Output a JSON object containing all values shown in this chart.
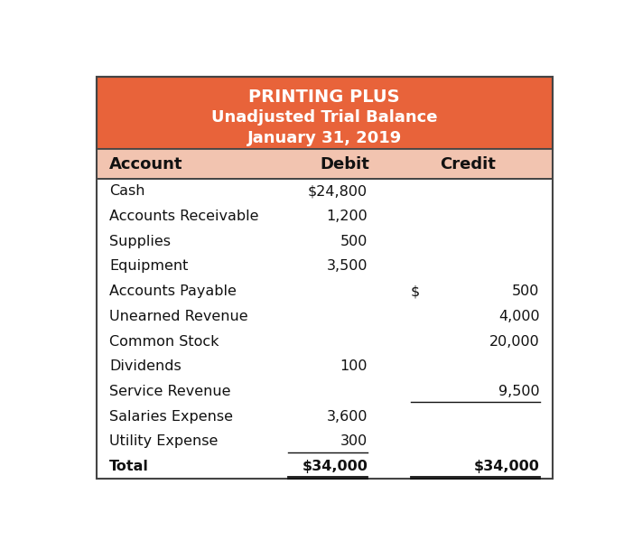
{
  "title_line1": "PRINTING PLUS",
  "title_line2": "Unadjusted Trial Balance",
  "title_line3": "January 31, 2019",
  "header_bg": "#E8633A",
  "col_header_bg": "#F2C4B0",
  "white_bg": "#FFFFFF",
  "title_color": "#FFFFFF",
  "col_headers": [
    "Account",
    "Debit",
    "Credit"
  ],
  "rows": [
    {
      "account": "Cash",
      "debit": "$24,800",
      "credit": "",
      "credit_dollar": false,
      "credit_ul": false,
      "debit_ul": false,
      "is_total": false
    },
    {
      "account": "Accounts Receivable",
      "debit": "1,200",
      "credit": "",
      "credit_dollar": false,
      "credit_ul": false,
      "debit_ul": false,
      "is_total": false
    },
    {
      "account": "Supplies",
      "debit": "500",
      "credit": "",
      "credit_dollar": false,
      "credit_ul": false,
      "debit_ul": false,
      "is_total": false
    },
    {
      "account": "Equipment",
      "debit": "3,500",
      "credit": "",
      "credit_dollar": false,
      "credit_ul": false,
      "debit_ul": false,
      "is_total": false
    },
    {
      "account": "Accounts Payable",
      "debit": "",
      "credit": "500",
      "credit_dollar": true,
      "credit_ul": false,
      "debit_ul": false,
      "is_total": false
    },
    {
      "account": "Unearned Revenue",
      "debit": "",
      "credit": "4,000",
      "credit_dollar": false,
      "credit_ul": false,
      "debit_ul": false,
      "is_total": false
    },
    {
      "account": "Common Stock",
      "debit": "",
      "credit": "20,000",
      "credit_dollar": false,
      "credit_ul": false,
      "debit_ul": false,
      "is_total": false
    },
    {
      "account": "Dividends",
      "debit": "100",
      "credit": "",
      "credit_dollar": false,
      "credit_ul": false,
      "debit_ul": false,
      "is_total": false
    },
    {
      "account": "Service Revenue",
      "debit": "",
      "credit": "9,500",
      "credit_dollar": false,
      "credit_ul": true,
      "debit_ul": false,
      "is_total": false
    },
    {
      "account": "Salaries Expense",
      "debit": "3,600",
      "credit": "",
      "credit_dollar": false,
      "credit_ul": false,
      "debit_ul": false,
      "is_total": false
    },
    {
      "account": "Utility Expense",
      "debit": "300",
      "credit": "",
      "credit_dollar": false,
      "credit_ul": false,
      "debit_ul": true,
      "is_total": false
    },
    {
      "account": "Total",
      "debit": "$34,000",
      "credit": "$34,000",
      "credit_dollar": false,
      "credit_ul": false,
      "debit_ul": false,
      "is_total": true
    }
  ],
  "font_size_title1": 14,
  "font_size_title23": 13,
  "font_size_header": 13,
  "font_size_body": 11.5,
  "text_color": "#111111",
  "border_color": "#444444",
  "figure_bg": "#FFFFFF"
}
